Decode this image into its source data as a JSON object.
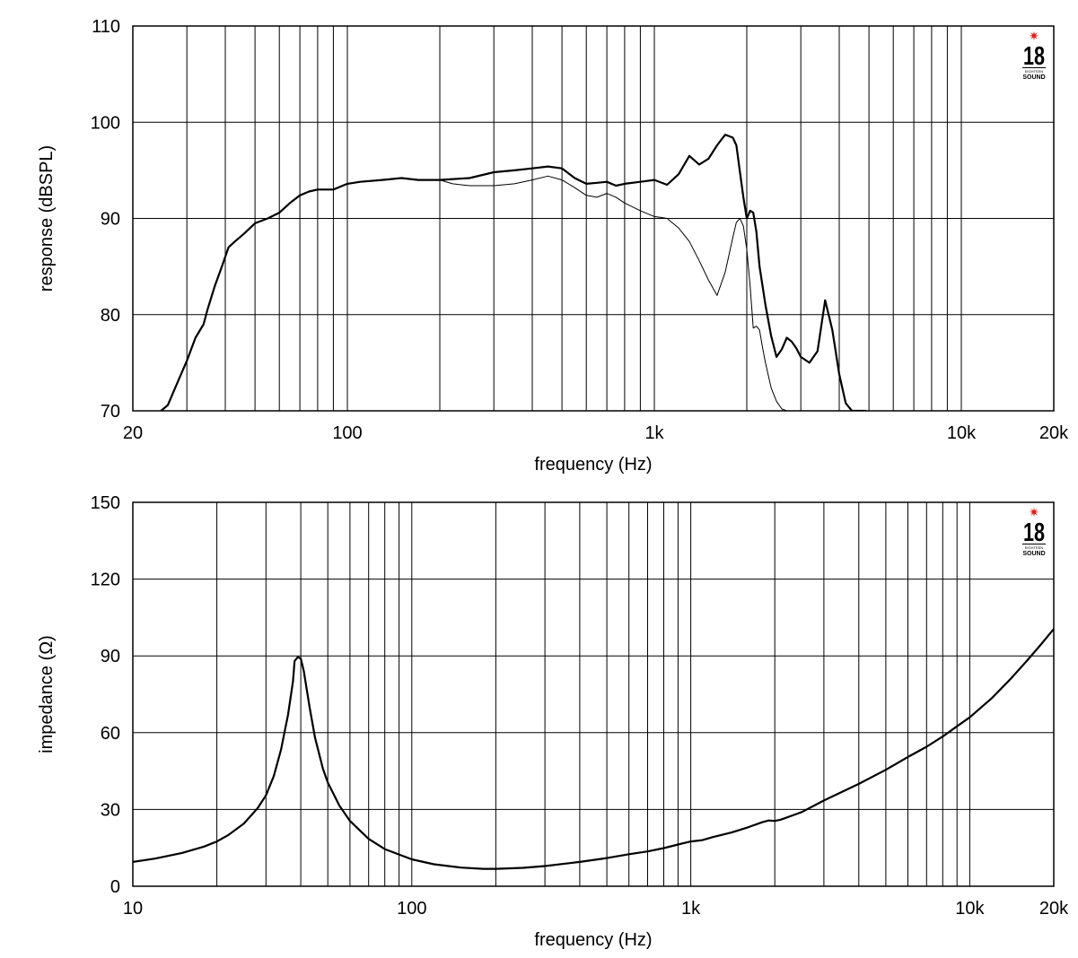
{
  "logo": {
    "number": "18",
    "subtext": "EIGHTEEN",
    "word": "SOUND",
    "star": "✷",
    "star_color": "#e0201b"
  },
  "chart_data": [
    {
      "type": "line",
      "x_scale": "log",
      "xlabel": "frequency (Hz)",
      "ylabel": "response (dBSPL)",
      "xlim": [
        20,
        20000
      ],
      "ylim": [
        70,
        110
      ],
      "grid": true,
      "x_grid_values": [
        30,
        40,
        50,
        60,
        70,
        80,
        90,
        100,
        200,
        300,
        400,
        500,
        600,
        700,
        800,
        900,
        1000,
        2000,
        3000,
        4000,
        5000,
        6000,
        7000,
        8000,
        9000,
        10000
      ],
      "x_ticks": [
        {
          "value": 20,
          "label": "20"
        },
        {
          "value": 100,
          "label": "100"
        },
        {
          "value": 1000,
          "label": "1k"
        },
        {
          "value": 10000,
          "label": "10k"
        },
        {
          "value": 20000,
          "label": "20k"
        }
      ],
      "y_ticks": [
        {
          "value": 70,
          "label": "70"
        },
        {
          "value": 80,
          "label": "80"
        },
        {
          "value": 90,
          "label": "90"
        },
        {
          "value": 100,
          "label": "100"
        },
        {
          "value": 110,
          "label": "110"
        }
      ],
      "series": [
        {
          "style": "thick",
          "x": [
            24.7,
            26,
            28,
            30,
            32,
            34,
            35,
            37,
            39,
            41,
            43,
            46,
            50,
            55,
            60,
            65,
            70,
            75,
            80,
            90,
            100,
            110,
            130,
            150,
            170,
            200,
            250,
            300,
            350,
            400,
            450,
            500,
            550,
            600,
            650,
            700,
            750,
            800,
            900,
            1000,
            1100,
            1200,
            1300,
            1400,
            1500,
            1600,
            1700,
            1800,
            1850,
            1900,
            1950,
            2000,
            2050,
            2100,
            2150,
            2200,
            2300,
            2400,
            2500,
            2600,
            2700,
            2800,
            2900,
            3000,
            3200,
            3400,
            3600,
            3800,
            4000,
            4200,
            4400,
            4700,
            4900
          ],
          "y": [
            70,
            70.6,
            73,
            75.2,
            77.6,
            79,
            80.5,
            83,
            85,
            87,
            87.6,
            88.4,
            89.5,
            90,
            90.6,
            91.6,
            92.4,
            92.8,
            93,
            93,
            93.6,
            93.8,
            94,
            94.2,
            94,
            94,
            94.2,
            94.8,
            95,
            95.2,
            95.4,
            95.2,
            94.2,
            93.6,
            93.7,
            93.8,
            93.4,
            93.6,
            93.8,
            94,
            93.5,
            94.6,
            96.5,
            95.6,
            96.2,
            97.6,
            98.7,
            98.4,
            97.6,
            94.8,
            92.2,
            90,
            90.8,
            90.6,
            88.6,
            85,
            81,
            77.8,
            75.6,
            76.4,
            77.6,
            77.2,
            76.5,
            75.6,
            75,
            76.2,
            81.5,
            78.4,
            73.8,
            70.8,
            70,
            70,
            70
          ]
        },
        {
          "style": "thin",
          "x": [
            200,
            220,
            250,
            300,
            350,
            400,
            450,
            500,
            550,
            600,
            650,
            700,
            750,
            800,
            900,
            1000,
            1050,
            1100,
            1200,
            1300,
            1400,
            1500,
            1550,
            1600,
            1700,
            1800,
            1850,
            1900,
            1950,
            2000,
            2050,
            2100,
            2150,
            2200,
            2250,
            2300,
            2400,
            2500,
            2600,
            2700
          ],
          "y": [
            94,
            93.6,
            93.4,
            93.4,
            93.6,
            94,
            94.4,
            94,
            93.2,
            92.4,
            92.2,
            92.6,
            92.2,
            91.6,
            90.8,
            90.2,
            90.1,
            90,
            89,
            87.6,
            85.6,
            83.6,
            82.8,
            82,
            84.4,
            88,
            89.6,
            90,
            89.2,
            86.8,
            83,
            78.6,
            78.8,
            78.4,
            76.6,
            75,
            72.4,
            71,
            70.2,
            70
          ]
        }
      ]
    },
    {
      "type": "line",
      "x_scale": "log",
      "xlabel": "frequency (Hz)",
      "ylabel": "impedance (Ω)",
      "xlim": [
        10,
        20000
      ],
      "ylim": [
        0,
        150
      ],
      "grid": true,
      "x_grid_values": [
        20,
        30,
        40,
        50,
        60,
        70,
        80,
        90,
        100,
        200,
        300,
        400,
        500,
        600,
        700,
        800,
        900,
        1000,
        2000,
        3000,
        4000,
        5000,
        6000,
        7000,
        8000,
        9000,
        10000
      ],
      "x_ticks": [
        {
          "value": 10,
          "label": "10"
        },
        {
          "value": 100,
          "label": "100"
        },
        {
          "value": 1000,
          "label": "1k"
        },
        {
          "value": 10000,
          "label": "10k"
        },
        {
          "value": 20000,
          "label": "20k"
        }
      ],
      "y_ticks": [
        {
          "value": 0,
          "label": "0"
        },
        {
          "value": 30,
          "label": "30"
        },
        {
          "value": 60,
          "label": "60"
        },
        {
          "value": 90,
          "label": "90"
        },
        {
          "value": 120,
          "label": "120"
        },
        {
          "value": 150,
          "label": "150"
        }
      ],
      "series": [
        {
          "style": "thick",
          "x": [
            10,
            12,
            15,
            18,
            20,
            22,
            25,
            28,
            30,
            32,
            34,
            36,
            37.5,
            38,
            39,
            40,
            41,
            43,
            45,
            48,
            50,
            55,
            60,
            70,
            80,
            100,
            120,
            150,
            180,
            200,
            250,
            300,
            400,
            500,
            600,
            700,
            800,
            900,
            1000,
            1100,
            1200,
            1400,
            1600,
            1800,
            1900,
            2000,
            2100,
            2500,
            3000,
            4000,
            5000,
            6000,
            7000,
            8000,
            9000,
            10000,
            12000,
            14000,
            16000,
            18000,
            20000
          ],
          "y": [
            9.5,
            10.8,
            13,
            15.5,
            17.5,
            20,
            24.5,
            30.5,
            35.5,
            43,
            53.5,
            67,
            80,
            88,
            89.5,
            89,
            84,
            70,
            58,
            46,
            40.5,
            31.5,
            25.5,
            18.5,
            14.5,
            10.5,
            8.6,
            7.3,
            6.8,
            6.8,
            7.2,
            7.9,
            9.5,
            11,
            12.5,
            13.6,
            14.9,
            16.3,
            17.5,
            18,
            19.2,
            21,
            23,
            25,
            25.7,
            25.5,
            26,
            29,
            33.5,
            40,
            45.5,
            50.5,
            54.5,
            58.5,
            62.5,
            66,
            73.5,
            81,
            88,
            94.5,
            100.5
          ]
        }
      ]
    }
  ]
}
